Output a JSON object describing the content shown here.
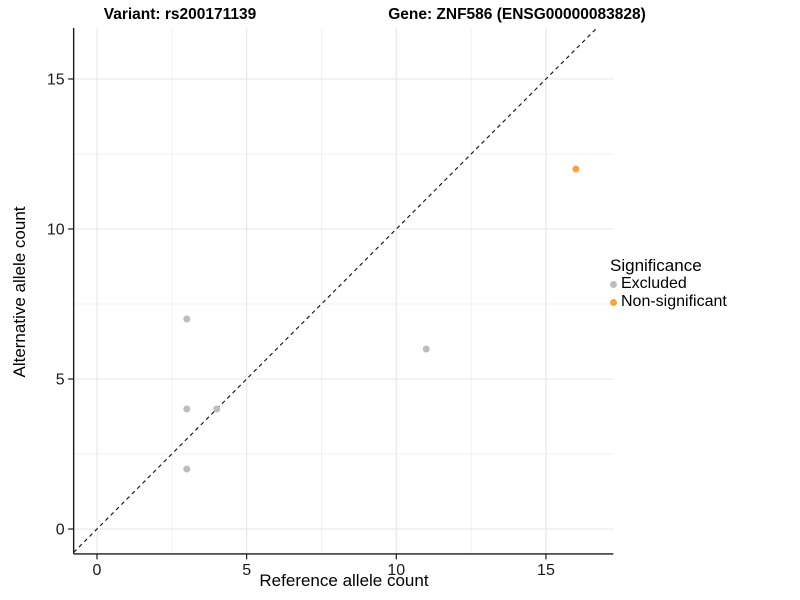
{
  "titles": {
    "variant": "Variant: rs200171139",
    "gene": "Gene: ZNF586 (ENSG00000083828)"
  },
  "chart_data": {
    "type": "scatter",
    "xlabel": "Reference allele count",
    "ylabel": "Alternative allele count",
    "xlim": [
      -0.78,
      17.25
    ],
    "ylim": [
      -0.83,
      16.7
    ],
    "xticks": [
      0,
      5,
      10,
      15
    ],
    "yticks": [
      0,
      5,
      10,
      15
    ],
    "minor_gridlines": [
      2.5,
      7.5,
      12.5
    ],
    "grid": true,
    "identity_line": {
      "style": "dashed",
      "from": [
        -0.78,
        -0.78
      ],
      "to": [
        16.7,
        16.7
      ]
    },
    "series": [
      {
        "name": "Excluded",
        "color": "#bdbdbd",
        "points": [
          [
            3,
            7
          ],
          [
            3,
            4
          ],
          [
            4,
            4
          ],
          [
            3,
            2
          ],
          [
            11,
            6
          ]
        ]
      },
      {
        "name": "Non-significant",
        "color": "#f9a242",
        "points": [
          [
            16,
            12
          ]
        ]
      }
    ],
    "legend": {
      "title": "Significance",
      "position": "right"
    },
    "colors": {
      "major_grid": "#e6e6e6",
      "minor_grid": "#f0f0f0",
      "axis_line": "#1a1a1a",
      "identity_line": "#151515"
    }
  }
}
